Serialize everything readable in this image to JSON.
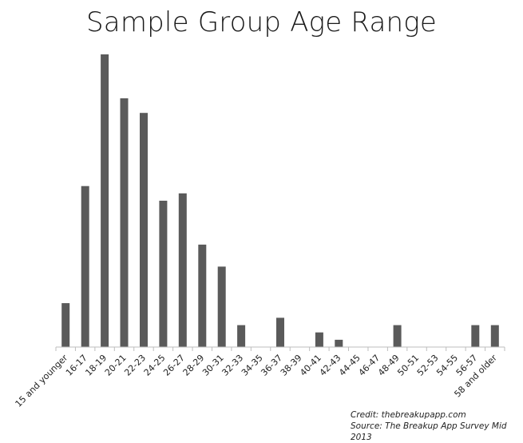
{
  "chart_data": {
    "type": "bar",
    "title": "Sample Group Age Range",
    "categories": [
      "15 and younger",
      "16-17",
      "18-19",
      "20-21",
      "22-23",
      "24-25",
      "26-27",
      "28-29",
      "30-31",
      "32-33",
      "34-35",
      "36-37",
      "38-39",
      "40-41",
      "42-43",
      "44-45",
      "46-47",
      "48-49",
      "50-51",
      "52-53",
      "54-55",
      "56-57",
      "58 and older"
    ],
    "values": [
      6,
      22,
      40,
      34,
      32,
      20,
      21,
      14,
      11,
      3,
      0,
      4,
      0,
      2,
      1,
      0,
      0,
      3,
      0,
      0,
      0,
      3,
      3
    ],
    "ylim": [
      0,
      40
    ],
    "xlabel": "",
    "ylabel": "",
    "bar_color": "#5a5a5a",
    "grid": false,
    "legend": "none"
  },
  "credit": {
    "line1": "Credit: thebreakupapp.com",
    "line2": "Source: The Breakup App Survey Mid 2013"
  }
}
